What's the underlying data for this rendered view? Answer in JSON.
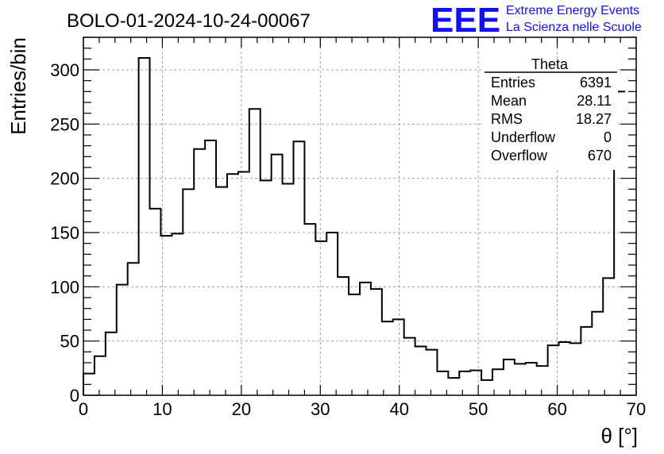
{
  "chart_data": {
    "type": "bar",
    "title": "BOLO-01-2024-10-24-00067",
    "xlabel": "θ [°]",
    "ylabel": "Entries/bin",
    "xlim": [
      0,
      70
    ],
    "ylim": [
      0,
      330
    ],
    "grid": true,
    "bin_width": 1.4,
    "x_ticks": [
      0,
      10,
      20,
      30,
      40,
      50,
      60,
      70
    ],
    "y_ticks": [
      0,
      50,
      100,
      150,
      200,
      250,
      300
    ],
    "x_tick_labels": [
      "0",
      "10",
      "20",
      "30",
      "40",
      "50",
      "60",
      "70"
    ],
    "y_tick_labels": [
      "0",
      "50",
      "100",
      "150",
      "200",
      "250",
      "300"
    ],
    "values": [
      20,
      36,
      58,
      102,
      122,
      311,
      172,
      147,
      149,
      190,
      227,
      235,
      192,
      204,
      206,
      264,
      198,
      222,
      195,
      234,
      158,
      142,
      150,
      109,
      93,
      104,
      98,
      68,
      70,
      53,
      45,
      42,
      22,
      16,
      22,
      23,
      14,
      24,
      33,
      29,
      30,
      27,
      46,
      49,
      48,
      63,
      77,
      108,
      280
    ],
    "stats_box": {
      "name": "Theta",
      "entries": [
        {
          "label": "Entries",
          "value": "6391"
        },
        {
          "label": "Mean",
          "value": "28.11"
        },
        {
          "label": "RMS",
          "value": "18.27"
        },
        {
          "label": "Underflow",
          "value": "0"
        },
        {
          "label": "Overflow",
          "value": "670"
        }
      ]
    }
  },
  "logo": {
    "mark": "EEE",
    "line1": "Extreme Energy Events",
    "line2": "La Scienza nelle Scuole",
    "color": "#1010ff"
  }
}
